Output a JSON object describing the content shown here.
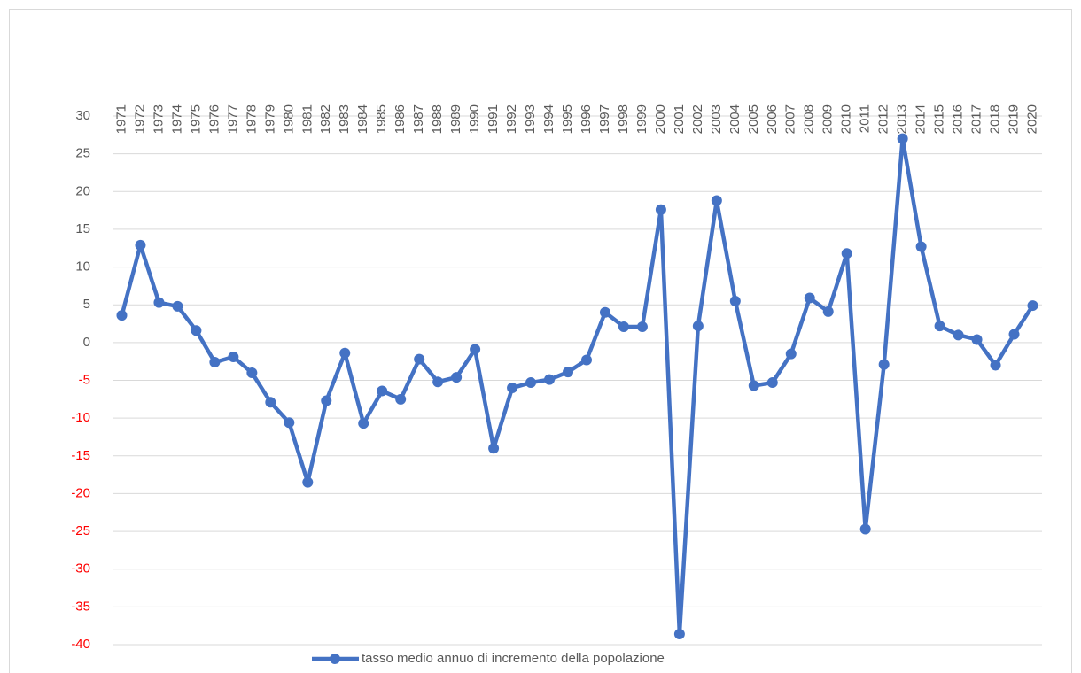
{
  "chart_data": {
    "type": "line",
    "categories": [
      "1971",
      "1972",
      "1973",
      "1974",
      "1975",
      "1976",
      "1977",
      "1978",
      "1979",
      "1980",
      "1981",
      "1982",
      "1983",
      "1984",
      "1985",
      "1986",
      "1987",
      "1988",
      "1989",
      "1990",
      "1991",
      "1992",
      "1993",
      "1994",
      "1995",
      "1996",
      "1997",
      "1998",
      "1999",
      "2000",
      "2001",
      "2002",
      "2003",
      "2004",
      "2005",
      "2006",
      "2007",
      "2008",
      "2009",
      "2010",
      "2011",
      "2012",
      "2013",
      "2014",
      "2015",
      "2016",
      "2017",
      "2018",
      "2019",
      "2020"
    ],
    "series": [
      {
        "name": "tasso medio annuo di incremento della popolazione",
        "color": "#4472c4",
        "values": [
          3.6,
          12.9,
          5.3,
          4.8,
          1.6,
          -2.6,
          -1.9,
          -4.0,
          -7.9,
          -10.6,
          -18.5,
          -7.7,
          -1.4,
          -10.7,
          -6.4,
          -7.5,
          -2.2,
          -5.2,
          -4.6,
          -0.9,
          -14.0,
          -6.0,
          -5.3,
          -4.9,
          -3.9,
          -2.3,
          4.0,
          2.1,
          2.1,
          17.6,
          -38.6,
          2.2,
          18.8,
          5.5,
          -5.7,
          -5.3,
          -1.5,
          5.9,
          4.1,
          11.8,
          -24.7,
          -2.9,
          27.0,
          12.7,
          2.2,
          1.0,
          0.4,
          -3.0,
          1.1,
          4.9
        ]
      }
    ],
    "ylim": [
      -40,
      30
    ],
    "yticks": [
      30,
      25,
      20,
      15,
      10,
      5,
      0,
      -5,
      -10,
      -15,
      -20,
      -25,
      -30,
      -35,
      -40
    ],
    "grid": true,
    "legend": "bottom",
    "negative_tick_color": "#ff0000"
  }
}
